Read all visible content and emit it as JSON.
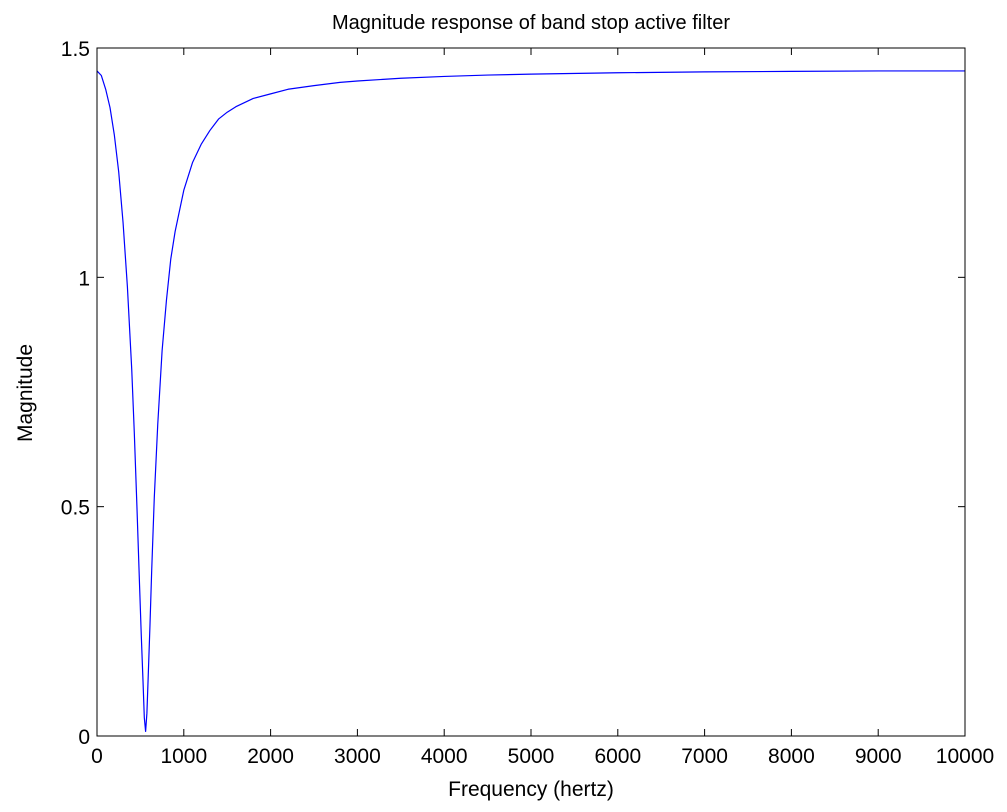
{
  "chart_data": {
    "type": "line",
    "title": "Magnitude response of band stop active filter",
    "xlabel": "Frequency (hertz)",
    "ylabel": "Magnitude",
    "xlim": [
      0,
      10000
    ],
    "ylim": [
      0,
      1.5
    ],
    "xticks": [
      0,
      1000,
      2000,
      3000,
      4000,
      5000,
      6000,
      7000,
      8000,
      9000,
      10000
    ],
    "xtick_labels": [
      "0",
      "1000",
      "2000",
      "3000",
      "4000",
      "5000",
      "6000",
      "7000",
      "8000",
      "9000",
      "10000"
    ],
    "yticks": [
      0,
      0.5,
      1,
      1.5
    ],
    "ytick_labels": [
      "0",
      "0.5",
      "1",
      "1.5"
    ],
    "grid": false,
    "series": [
      {
        "color": "#0000ff",
        "x": [
          0,
          50,
          100,
          150,
          200,
          250,
          300,
          350,
          400,
          430,
          460,
          490,
          510,
          530,
          545,
          560,
          575,
          590,
          610,
          630,
          660,
          700,
          750,
          800,
          850,
          900,
          1000,
          1100,
          1200,
          1300,
          1400,
          1500,
          1600,
          1800,
          2000,
          2200,
          2500,
          2800,
          3000,
          3500,
          4000,
          4500,
          5000,
          6000,
          7000,
          8000,
          9000,
          10000
        ],
        "values": [
          1.45,
          1.44,
          1.41,
          1.37,
          1.31,
          1.23,
          1.12,
          0.98,
          0.8,
          0.66,
          0.5,
          0.33,
          0.22,
          0.12,
          0.04,
          0.01,
          0.05,
          0.13,
          0.24,
          0.36,
          0.52,
          0.68,
          0.84,
          0.95,
          1.04,
          1.1,
          1.19,
          1.25,
          1.29,
          1.32,
          1.345,
          1.36,
          1.372,
          1.39,
          1.4,
          1.41,
          1.418,
          1.425,
          1.428,
          1.434,
          1.438,
          1.441,
          1.443,
          1.446,
          1.448,
          1.449,
          1.45,
          1.45
        ]
      }
    ]
  }
}
